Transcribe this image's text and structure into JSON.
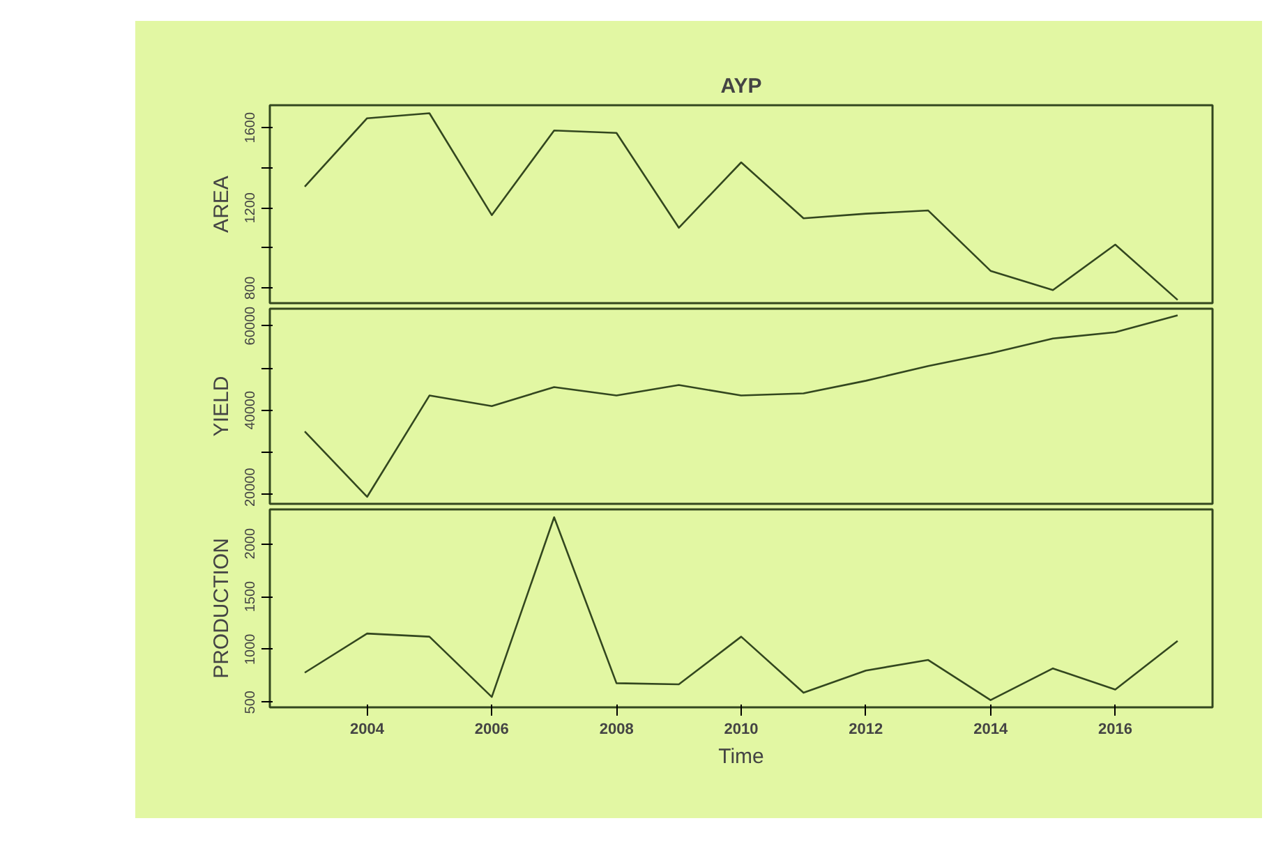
{
  "chart_data": [
    {
      "type": "line",
      "title": "AYP",
      "ylabel": "AREA",
      "tick_labels": "y",
      "x": [
        2003,
        2004,
        2005,
        2006,
        2007,
        2008,
        2009,
        2010,
        2011,
        2012,
        2013,
        2014,
        2015,
        2016,
        2017
      ],
      "xlim": [
        2002.44,
        2017.56
      ],
      "ylim": [
        725,
        1712
      ],
      "yticks": [
        800,
        {
          "value": 1000,
          "label": null
        },
        1200,
        {
          "value": 1400,
          "label": null
        },
        1600
      ],
      "series": [
        {
          "color": "#33471f",
          "values": [
            1306,
            1647,
            1672,
            1164,
            1586,
            1574,
            1101,
            1427,
            1148,
            1171,
            1187,
            886,
            790,
            1017,
            741
          ]
        }
      ]
    },
    {
      "type": "line",
      "ylabel": "YIELD",
      "tick_labels": "y",
      "x": [
        2003,
        2004,
        2005,
        2006,
        2007,
        2008,
        2009,
        2010,
        2011,
        2012,
        2013,
        2014,
        2015,
        2016,
        2017
      ],
      "xlim": [
        2002.44,
        2017.56
      ],
      "ylim": [
        17840,
        64065
      ],
      "yticks": [
        20000,
        {
          "value": 30000,
          "label": null
        },
        40000,
        {
          "value": 50000,
          "label": null
        },
        60000
      ],
      "series": [
        {
          "color": "#33471f",
          "values": [
            35000,
            19500,
            43500,
            41000,
            45500,
            43500,
            46000,
            43500,
            44000,
            47000,
            50500,
            53500,
            57000,
            58500,
            62500
          ]
        }
      ]
    },
    {
      "type": "line",
      "ylabel": "PRODUCTION",
      "xlabel": "Time",
      "x": [
        2003,
        2004,
        2005,
        2006,
        2007,
        2008,
        2009,
        2010,
        2011,
        2012,
        2013,
        2014,
        2015,
        2016,
        2017
      ],
      "xlim": [
        2002.44,
        2017.56
      ],
      "xticks": [
        2004,
        2006,
        2008,
        2010,
        2012,
        2014,
        2016
      ],
      "ylim": [
        452,
        2324
      ],
      "yticks": [
        500,
        1000,
        1500,
        2000
      ],
      "series": [
        {
          "color": "#33471f",
          "values": [
            780,
            1150,
            1120,
            550,
            2250,
            680,
            670,
            1120,
            590,
            800,
            900,
            520,
            820,
            620,
            1080
          ]
        }
      ]
    }
  ]
}
